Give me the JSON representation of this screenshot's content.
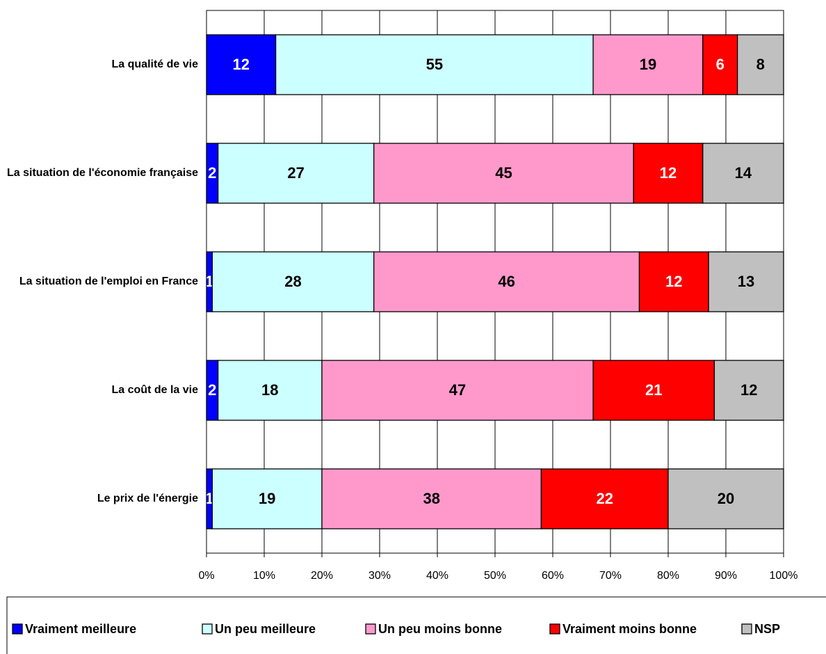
{
  "chart_data": {
    "type": "stacked_barh",
    "categories": [
      "La qualité de vie",
      "La situation de l'économie française",
      "La situation de l'emploi en France",
      "La coût de la vie",
      "Le prix de l'énergie"
    ],
    "series": [
      {
        "name": "Vraiment meilleure",
        "color": "#0000ff",
        "label_color": "#ffffff",
        "values": [
          12,
          2,
          1,
          2,
          1
        ]
      },
      {
        "name": "Un peu meilleure",
        "color": "#ccffff",
        "label_color": "#000000",
        "values": [
          55,
          27,
          28,
          18,
          19
        ]
      },
      {
        "name": "Un peu moins bonne",
        "color": "#ff99cc",
        "label_color": "#000000",
        "values": [
          19,
          45,
          46,
          47,
          38
        ]
      },
      {
        "name": "Vraiment moins bonne",
        "color": "#ff0000",
        "label_color": "#ffffff",
        "values": [
          6,
          12,
          12,
          21,
          22
        ]
      },
      {
        "name": "NSP",
        "color": "#c0c0c0",
        "label_color": "#000000",
        "values": [
          8,
          14,
          13,
          12,
          20
        ]
      }
    ],
    "xlim": [
      0,
      100
    ],
    "xticks": [
      {
        "value": 0,
        "label": "0%"
      },
      {
        "value": 10,
        "label": "10%"
      },
      {
        "value": 20,
        "label": "20%"
      },
      {
        "value": 30,
        "label": "30%"
      },
      {
        "value": 40,
        "label": "40%"
      },
      {
        "value": 50,
        "label": "50%"
      },
      {
        "value": 60,
        "label": "60%"
      },
      {
        "value": 70,
        "label": "70%"
      },
      {
        "value": 80,
        "label": "80%"
      },
      {
        "value": 90,
        "label": "90%"
      },
      {
        "value": 100,
        "label": "100%"
      }
    ],
    "grid": true,
    "legend": "bottom"
  }
}
